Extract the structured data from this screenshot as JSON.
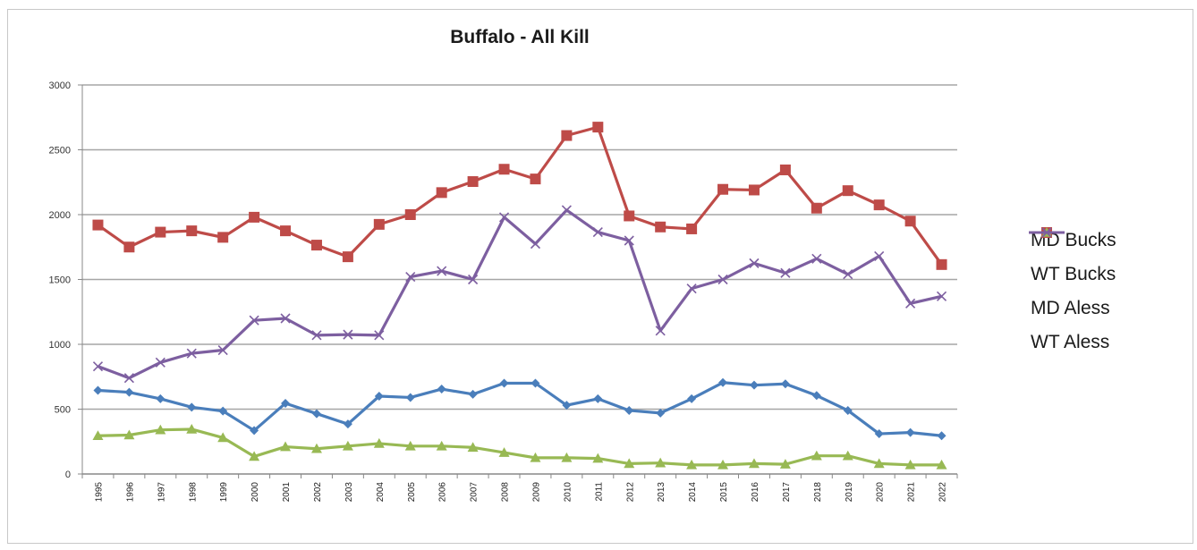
{
  "chart_data": {
    "type": "line",
    "title": "Buffalo - All Kill",
    "xlabel": "",
    "ylabel": "",
    "ylim": [
      0,
      3000
    ],
    "yticks": [
      0,
      500,
      1000,
      1500,
      2000,
      2500,
      3000
    ],
    "ytick_labels": [
      "0",
      "500",
      "1000",
      "1500",
      "2000",
      "2500",
      "3000"
    ],
    "grid": true,
    "legend_position": "right",
    "x": [
      "1995",
      "1996",
      "1997",
      "1998",
      "1999",
      "2000",
      "2001",
      "2002",
      "2003",
      "2004",
      "2005",
      "2006",
      "2007",
      "2008",
      "2009",
      "2010",
      "2011",
      "2012",
      "2013",
      "2014",
      "2015",
      "2016",
      "2017",
      "2018",
      "2019",
      "2020",
      "2021",
      "2022"
    ],
    "series": [
      {
        "name": "MD Bucks",
        "color": "#4a7ebb",
        "marker": "diamond",
        "values": [
          645,
          630,
          580,
          515,
          485,
          335,
          545,
          465,
          385,
          600,
          590,
          655,
          615,
          700,
          700,
          530,
          580,
          490,
          470,
          580,
          705,
          685,
          695,
          605,
          490,
          310,
          320,
          295
        ]
      },
      {
        "name": "WT Bucks",
        "color": "#be4b48",
        "marker": "square",
        "values": [
          1920,
          1750,
          1865,
          1875,
          1825,
          1980,
          1875,
          1765,
          1675,
          1925,
          2000,
          2170,
          2255,
          2350,
          2275,
          2610,
          2675,
          1990,
          1905,
          1890,
          2195,
          2190,
          2345,
          2050,
          2185,
          2075,
          1950,
          1615
        ]
      },
      {
        "name": "MD Aless",
        "color": "#98b954",
        "marker": "triangle",
        "values": [
          295,
          300,
          340,
          345,
          280,
          135,
          210,
          195,
          215,
          235,
          215,
          215,
          205,
          165,
          125,
          125,
          120,
          80,
          85,
          70,
          70,
          80,
          75,
          140,
          140,
          80,
          70,
          70
        ]
      },
      {
        "name": "WT Aless",
        "color": "#7d5fa0",
        "marker": "x",
        "values": [
          830,
          740,
          860,
          930,
          955,
          1185,
          1200,
          1070,
          1075,
          1070,
          1520,
          1565,
          1500,
          1980,
          1775,
          2035,
          1865,
          1800,
          1105,
          1430,
          1500,
          1625,
          1550,
          1660,
          1540,
          1680,
          1315,
          1370
        ]
      }
    ]
  }
}
